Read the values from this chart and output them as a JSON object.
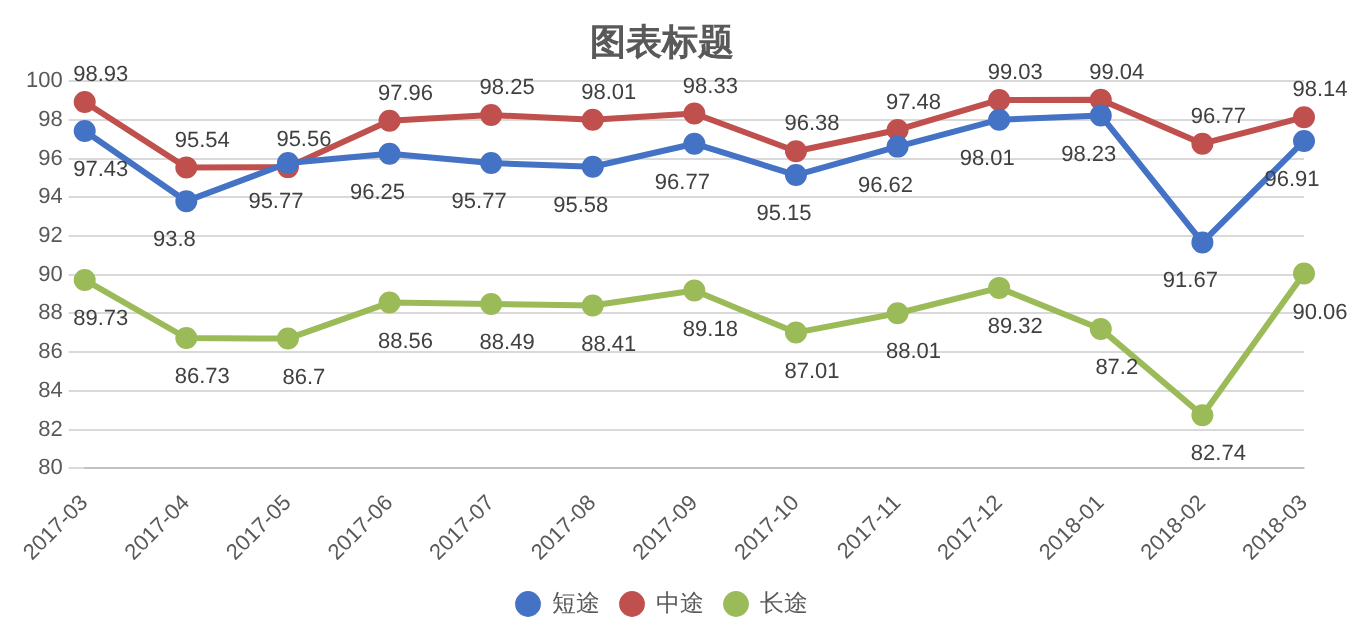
{
  "chart_data": {
    "type": "line",
    "title": "图表标题",
    "categories": [
      "2017-03",
      "2017-04",
      "2017-05",
      "2017-06",
      "2017-07",
      "2017-08",
      "2017-09",
      "2017-10",
      "2017-11",
      "2017-12",
      "2018-01",
      "2018-02",
      "2018-03"
    ],
    "series": [
      {
        "name": "短途",
        "color": "#4472c4",
        "values": [
          97.43,
          93.8,
          95.77,
          96.25,
          95.77,
          95.58,
          96.77,
          95.15,
          96.62,
          98.01,
          98.23,
          91.67,
          96.91
        ]
      },
      {
        "name": "中途",
        "color": "#c0504d",
        "values": [
          98.93,
          95.54,
          95.56,
          97.96,
          98.25,
          98.01,
          98.33,
          96.38,
          97.48,
          99.03,
          99.04,
          96.77,
          98.14
        ]
      },
      {
        "name": "长途",
        "color": "#9bbb59",
        "values": [
          89.73,
          86.73,
          86.7,
          88.56,
          88.49,
          88.41,
          89.18,
          87.01,
          88.01,
          89.32,
          87.2,
          82.74,
          90.06
        ]
      }
    ],
    "ylim": [
      80,
      100
    ],
    "yticks": [
      80,
      82,
      84,
      86,
      88,
      90,
      92,
      94,
      96,
      98,
      100
    ],
    "grid": "y",
    "legend": "bottom",
    "marker": "circle",
    "line_style": "solid",
    "data_labels": true
  }
}
